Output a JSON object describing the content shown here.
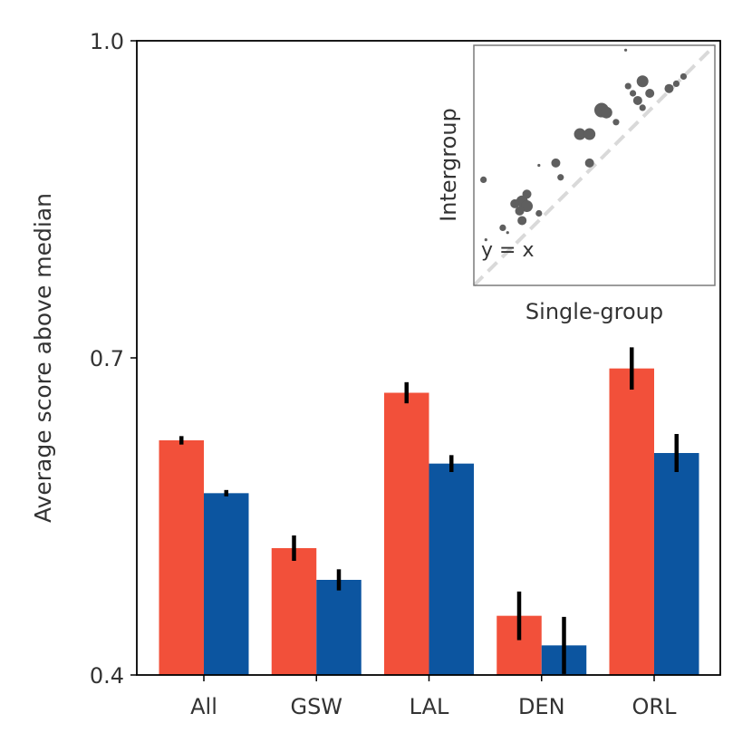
{
  "chart_data": [
    {
      "type": "bar",
      "title": "",
      "xlabel": "",
      "ylabel": "Average score above median",
      "ylim": [
        0.4,
        1.0
      ],
      "yticks": [
        {
          "value": 0.4,
          "label": "0.4"
        },
        {
          "value": 0.7,
          "label": "0.7"
        },
        {
          "value": 1.0,
          "label": "1.0"
        }
      ],
      "categories": [
        "All",
        "GSW",
        "LAL",
        "DEN",
        "ORL"
      ],
      "series": [
        {
          "name": "Intergroup",
          "color": "#f2503a",
          "values": [
            0.622,
            0.52,
            0.667,
            0.456,
            0.69
          ],
          "errors": [
            0.004,
            0.012,
            0.01,
            0.023,
            0.02
          ]
        },
        {
          "name": "Single-group",
          "color": "#0c55a0",
          "values": [
            0.572,
            0.49,
            0.6,
            0.428,
            0.61
          ],
          "errors": [
            0.003,
            0.01,
            0.008,
            0.027,
            0.018
          ]
        }
      ],
      "legend": "none",
      "grid": false
    },
    {
      "type": "scatter",
      "title": "",
      "xlabel": "Single-group",
      "ylabel": "Intergroup",
      "xlim": [
        0,
        1
      ],
      "ylim": [
        0,
        1
      ],
      "ticks": "none",
      "reference_line": {
        "label": "y = x",
        "color": "#d9d9d9",
        "style": "dashed"
      },
      "color": "#5f5f5f",
      "points": [
        {
          "x": 0.63,
          "y": 0.98,
          "size": 1
        },
        {
          "x": 0.87,
          "y": 0.87,
          "size": 2
        },
        {
          "x": 0.7,
          "y": 0.85,
          "size": 4
        },
        {
          "x": 0.64,
          "y": 0.83,
          "size": 2
        },
        {
          "x": 0.66,
          "y": 0.8,
          "size": 2
        },
        {
          "x": 0.73,
          "y": 0.8,
          "size": 3
        },
        {
          "x": 0.68,
          "y": 0.77,
          "size": 3
        },
        {
          "x": 0.81,
          "y": 0.82,
          "size": 3
        },
        {
          "x": 0.84,
          "y": 0.84,
          "size": 2
        },
        {
          "x": 0.7,
          "y": 0.74,
          "size": 2
        },
        {
          "x": 0.53,
          "y": 0.73,
          "size": 5
        },
        {
          "x": 0.55,
          "y": 0.72,
          "size": 4
        },
        {
          "x": 0.59,
          "y": 0.68,
          "size": 2
        },
        {
          "x": 0.44,
          "y": 0.63,
          "size": 4
        },
        {
          "x": 0.48,
          "y": 0.63,
          "size": 4
        },
        {
          "x": 0.48,
          "y": 0.51,
          "size": 3
        },
        {
          "x": 0.34,
          "y": 0.51,
          "size": 3
        },
        {
          "x": 0.27,
          "y": 0.5,
          "size": 1
        },
        {
          "x": 0.36,
          "y": 0.45,
          "size": 2
        },
        {
          "x": 0.04,
          "y": 0.44,
          "size": 2
        },
        {
          "x": 0.22,
          "y": 0.38,
          "size": 3
        },
        {
          "x": 0.2,
          "y": 0.35,
          "size": 4
        },
        {
          "x": 0.17,
          "y": 0.34,
          "size": 3
        },
        {
          "x": 0.22,
          "y": 0.33,
          "size": 4
        },
        {
          "x": 0.19,
          "y": 0.31,
          "size": 3
        },
        {
          "x": 0.27,
          "y": 0.3,
          "size": 2
        },
        {
          "x": 0.2,
          "y": 0.27,
          "size": 3
        },
        {
          "x": 0.12,
          "y": 0.24,
          "size": 2
        },
        {
          "x": 0.14,
          "y": 0.22,
          "size": 1
        },
        {
          "x": 0.05,
          "y": 0.19,
          "size": 1
        }
      ]
    }
  ]
}
